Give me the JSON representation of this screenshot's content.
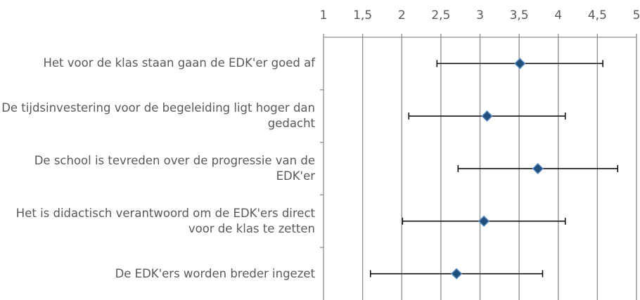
{
  "chart_data": {
    "type": "dot_errorbar",
    "categories": [
      "Het voor de klas staan gaan de EDK'er goed af",
      "De tijdsinvestering voor de begeleiding ligt hoger dan gedacht",
      "De school is tevreden over de progressie van de EDK'er",
      "Het is didactisch verantwoord om de EDK'ers direct voor de klas te zetten",
      "De EDK'ers worden breder ingezet"
    ],
    "values": [
      3.51,
      3.09,
      3.74,
      3.05,
      2.7
    ],
    "errors": [
      1.06,
      1.0,
      1.02,
      1.04,
      1.1
    ],
    "color": "#1f4e79",
    "xlim": [
      1,
      5
    ],
    "xticks": [
      1,
      {
        "value": 1.5,
        "label": "1,5"
      },
      2,
      {
        "value": 2.5,
        "label": "2,5"
      },
      3,
      {
        "value": 3.5,
        "label": "3,5"
      },
      4,
      {
        "value": 4.5,
        "label": "4,5"
      },
      5
    ],
    "grid": true
  }
}
